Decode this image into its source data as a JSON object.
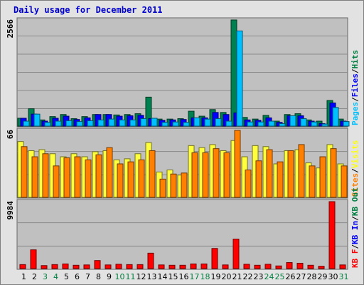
{
  "chart_data": {
    "type": "bar",
    "title": "Daily usage for December 2011",
    "categories": [
      "1",
      "2",
      "3",
      "4",
      "5",
      "6",
      "7",
      "8",
      "9",
      "10",
      "11",
      "12",
      "13",
      "14",
      "15",
      "16",
      "17",
      "18",
      "19",
      "20",
      "21",
      "22",
      "23",
      "24",
      "25",
      "26",
      "27",
      "28",
      "29",
      "30",
      "31"
    ],
    "weekend_days": [
      "3",
      "4",
      "10",
      "11",
      "17",
      "18",
      "24",
      "25",
      "31"
    ],
    "panels": [
      {
        "name": "hits-files-pages",
        "ymax_label": "2566",
        "ymax": 2566,
        "legend": [
          {
            "label": "Pages",
            "color": "#00c0ff"
          },
          {
            "label": "/",
            "color": "#000000"
          },
          {
            "label": "Files",
            "color": "#0000ff"
          },
          {
            "label": "/",
            "color": "#000000"
          },
          {
            "label": "Hits",
            "color": "#008040"
          }
        ],
        "series": [
          {
            "name": "Hits",
            "color": "#008050",
            "values": [
              190,
              420,
              150,
              230,
              280,
              180,
              230,
              280,
              280,
              270,
              280,
              300,
              700,
              170,
              170,
              180,
              360,
              240,
              400,
              330,
              2566,
              210,
              170,
              260,
              120,
              280,
              300,
              150,
              120,
              620,
              170
            ]
          },
          {
            "name": "Files",
            "color": "#0000ff",
            "values": [
              190,
              290,
              120,
              190,
              240,
              160,
              200,
              280,
              280,
              240,
              250,
              260,
              180,
              140,
              150,
              160,
              200,
              200,
              330,
              280,
              320,
              150,
              140,
              200,
              90,
              250,
              250,
              120,
              60,
              560,
              120
            ]
          },
          {
            "name": "Pages",
            "color": "#00c0ff",
            "values": [
              120,
              290,
              90,
              120,
              130,
              110,
              130,
              150,
              170,
              150,
              150,
              180,
              190,
              90,
              100,
              90,
              200,
              170,
              180,
              120,
              2300,
              100,
              100,
              120,
              60,
              250,
              180,
              100,
              50,
              450,
              110
            ]
          }
        ]
      },
      {
        "name": "visits-sites",
        "ymax_label": "66",
        "ymax": 66,
        "legend": [
          {
            "label": "Sites",
            "color": "#ff8000"
          },
          {
            "label": "/",
            "color": "#000000"
          },
          {
            "label": "Visits",
            "color": "#ffff00"
          }
        ],
        "series": [
          {
            "name": "Visits",
            "color": "#ffff40",
            "values": [
              55,
              46,
              47,
              43,
              40,
              43,
              40,
              45,
              46,
              37,
              38,
              43,
              54,
              25,
              27,
              22,
              51,
              49,
              52,
              46,
              56,
              40,
              51,
              50,
              33,
              46,
              47,
              34,
              29,
              52,
              33
            ]
          },
          {
            "name": "Sites",
            "color": "#ff8000",
            "values": [
              50,
              40,
              43,
              31,
              39,
              40,
              37,
              42,
              49,
              33,
              35,
              37,
              46,
              18,
              23,
              24,
              44,
              44,
              48,
              44,
              66,
              27,
              36,
              47,
              35,
              46,
              52,
              31,
              40,
              48,
              31
            ]
          }
        ]
      },
      {
        "name": "kbytes",
        "ymax_label": "9984",
        "ymax": 9984,
        "legend": [
          {
            "label": "KB F",
            "color": "#ff0000"
          },
          {
            "label": "/",
            "color": "#000000"
          },
          {
            "label": "KB In",
            "color": "#0000ff"
          },
          {
            "label": "/",
            "color": "#000000"
          },
          {
            "label": "KB Out",
            "color": "#008040"
          }
        ],
        "series": [
          {
            "name": "KB F",
            "color": "#ff0000",
            "values": [
              600,
              2800,
              450,
              600,
              700,
              500,
              550,
              1200,
              550,
              650,
              600,
              600,
              2300,
              550,
              500,
              500,
              700,
              700,
              3000,
              550,
              4400,
              650,
              500,
              650,
              400,
              900,
              800,
              500,
              350,
              9984,
              550
            ]
          }
        ]
      }
    ],
    "weekday_color": "#000000",
    "weekend_color": "#008040",
    "grid": true
  }
}
